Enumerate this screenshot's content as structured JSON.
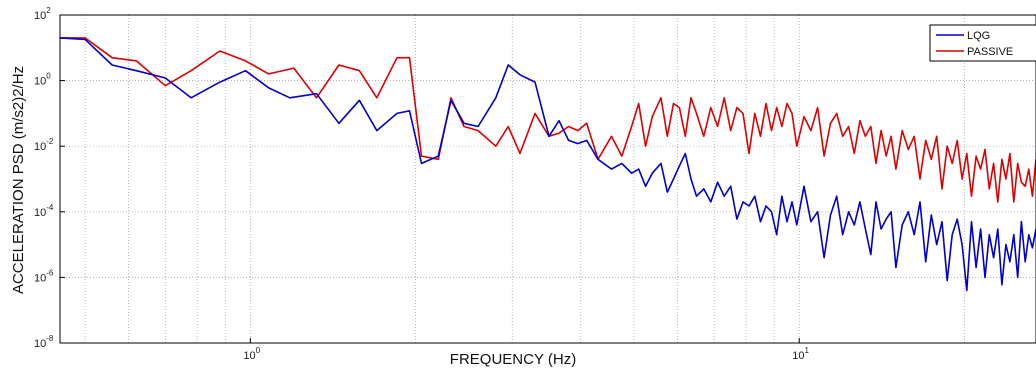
{
  "chart_data": {
    "type": "line",
    "xscale": "log",
    "yscale": "log",
    "xlabel": "FREQUENCY (Hz)",
    "ylabel": "ACCELERATION PSD (m/s2)2/Hz",
    "xlim": [
      0.45,
      27
    ],
    "ylim": [
      1e-08,
      100
    ],
    "grid": true,
    "legend_position": "top-right",
    "x_ticks": [
      {
        "base": "10",
        "exp": "0",
        "value": 1
      },
      {
        "base": "10",
        "exp": "1",
        "value": 10
      }
    ],
    "y_ticks": [
      {
        "base": "10",
        "exp": "2",
        "value": 100
      },
      {
        "base": "10",
        "exp": "0",
        "value": 1
      },
      {
        "base": "10",
        "exp": "-2",
        "value": 0.01
      },
      {
        "base": "10",
        "exp": "-4",
        "value": 0.0001
      },
      {
        "base": "10",
        "exp": "-6",
        "value": 1e-06
      },
      {
        "base": "10",
        "exp": "-8",
        "value": 1e-08
      }
    ],
    "series": [
      {
        "name": "LQG",
        "color": "#0000cc",
        "x": [
          0.45,
          0.5,
          0.56,
          0.62,
          0.7,
          0.78,
          0.88,
          0.98,
          1.08,
          1.18,
          1.32,
          1.45,
          1.58,
          1.7,
          1.85,
          1.95,
          2.05,
          2.2,
          2.32,
          2.45,
          2.6,
          2.8,
          2.95,
          3.1,
          3.3,
          3.5,
          3.65,
          3.8,
          3.95,
          4.1,
          4.3,
          4.55,
          4.75,
          4.95,
          5.1,
          5.25,
          5.4,
          5.6,
          5.75,
          5.9,
          6.05,
          6.2,
          6.35,
          6.5,
          6.7,
          6.9,
          7.1,
          7.3,
          7.5,
          7.7,
          7.9,
          8.1,
          8.3,
          8.5,
          8.7,
          8.9,
          9.1,
          9.3,
          9.5,
          9.7,
          9.9,
          10.2,
          10.5,
          10.8,
          11.1,
          11.4,
          11.7,
          12.0,
          12.3,
          12.6,
          12.9,
          13.2,
          13.5,
          13.8,
          14.1,
          14.4,
          14.7,
          15.0,
          15.4,
          15.8,
          16.2,
          16.6,
          17.0,
          17.4,
          17.8,
          18.2,
          18.6,
          19.0,
          19.4,
          19.8,
          20.2,
          20.6,
          21.0,
          21.4,
          21.8,
          22.2,
          22.6,
          23.0,
          23.4,
          23.8,
          24.2,
          24.6,
          25.0,
          25.4,
          25.8,
          26.2,
          26.6,
          27.0
        ],
        "values": [
          20,
          18,
          3,
          2,
          1.2,
          0.3,
          0.9,
          2,
          0.6,
          0.3,
          0.4,
          0.05,
          0.25,
          0.03,
          0.1,
          0.12,
          0.003,
          0.005,
          0.25,
          0.05,
          0.04,
          0.3,
          3,
          1.5,
          0.9,
          0.02,
          0.06,
          0.015,
          0.012,
          0.015,
          0.004,
          0.002,
          0.003,
          0.0015,
          0.002,
          0.0006,
          0.0015,
          0.003,
          0.0004,
          0.001,
          0.0025,
          0.006,
          0.001,
          0.0003,
          0.0005,
          0.0002,
          0.0008,
          0.0003,
          0.0006,
          6e-05,
          0.0002,
          0.00015,
          0.0003,
          5e-05,
          0.00015,
          0.0001,
          2e-05,
          0.0003,
          5e-05,
          0.0002,
          4e-05,
          0.0006,
          5e-05,
          0.0001,
          4e-06,
          8e-05,
          0.0003,
          2e-05,
          0.0001,
          4e-05,
          0.0002,
          3e-05,
          5e-06,
          0.0002,
          3e-05,
          6e-05,
          0.0001,
          2e-06,
          4e-05,
          0.0001,
          2e-05,
          0.0002,
          3e-06,
          8e-05,
          1e-05,
          5e-05,
          8e-07,
          2e-05,
          6e-05,
          1e-05,
          4e-07,
          5e-05,
          2e-06,
          3e-05,
          1e-06,
          2e-05,
          4e-06,
          3e-05,
          6e-07,
          1e-05,
          3e-06,
          2e-05,
          1e-06,
          5e-05,
          3e-06,
          2e-05,
          8e-06,
          3e-05
        ]
      },
      {
        "name": "PASSIVE",
        "color": "#dd0000",
        "x": [
          0.45,
          0.5,
          0.56,
          0.62,
          0.7,
          0.78,
          0.88,
          0.98,
          1.08,
          1.2,
          1.32,
          1.45,
          1.58,
          1.7,
          1.85,
          1.95,
          2.05,
          2.2,
          2.32,
          2.45,
          2.6,
          2.8,
          2.95,
          3.1,
          3.3,
          3.5,
          3.65,
          3.8,
          3.95,
          4.1,
          4.3,
          4.55,
          4.75,
          4.95,
          5.1,
          5.25,
          5.4,
          5.6,
          5.75,
          5.9,
          6.05,
          6.2,
          6.35,
          6.5,
          6.7,
          6.9,
          7.1,
          7.3,
          7.5,
          7.7,
          7.9,
          8.1,
          8.3,
          8.5,
          8.7,
          8.9,
          9.1,
          9.3,
          9.5,
          9.7,
          9.9,
          10.2,
          10.5,
          10.8,
          11.1,
          11.4,
          11.7,
          12.0,
          12.3,
          12.6,
          12.9,
          13.2,
          13.5,
          13.8,
          14.1,
          14.4,
          14.7,
          15.0,
          15.4,
          15.8,
          16.2,
          16.6,
          17.0,
          17.4,
          17.8,
          18.2,
          18.6,
          19.0,
          19.4,
          19.8,
          20.2,
          20.6,
          21.0,
          21.4,
          21.8,
          22.2,
          22.6,
          23.0,
          23.4,
          23.8,
          24.2,
          24.6,
          25.0,
          25.4,
          25.8,
          26.2,
          26.6,
          27.0
        ],
        "values": [
          20,
          20,
          5,
          4,
          0.7,
          2,
          8,
          4,
          1.6,
          2.4,
          0.3,
          3,
          2,
          0.3,
          5,
          5,
          0.005,
          0.004,
          0.3,
          0.04,
          0.03,
          0.01,
          0.04,
          0.006,
          0.1,
          0.02,
          0.025,
          0.04,
          0.03,
          0.05,
          0.004,
          0.02,
          0.005,
          0.04,
          0.2,
          0.01,
          0.08,
          0.3,
          0.02,
          0.2,
          0.15,
          0.02,
          0.3,
          0.1,
          0.02,
          0.15,
          0.04,
          0.3,
          0.03,
          0.15,
          0.1,
          0.006,
          0.1,
          0.02,
          0.2,
          0.03,
          0.15,
          0.04,
          0.2,
          0.1,
          0.01,
          0.08,
          0.03,
          0.15,
          0.005,
          0.05,
          0.1,
          0.02,
          0.04,
          0.006,
          0.06,
          0.02,
          0.04,
          0.003,
          0.03,
          0.005,
          0.02,
          0.002,
          0.03,
          0.008,
          0.02,
          0.001,
          0.015,
          0.004,
          0.02,
          0.0005,
          0.01,
          0.003,
          0.015,
          0.001,
          0.006,
          0.0003,
          0.005,
          0.002,
          0.008,
          0.0005,
          0.003,
          0.0002,
          0.004,
          0.001,
          0.006,
          0.0002,
          0.003,
          0.0008,
          0.0006,
          0.002,
          0.0003,
          0.004
        ]
      }
    ]
  }
}
